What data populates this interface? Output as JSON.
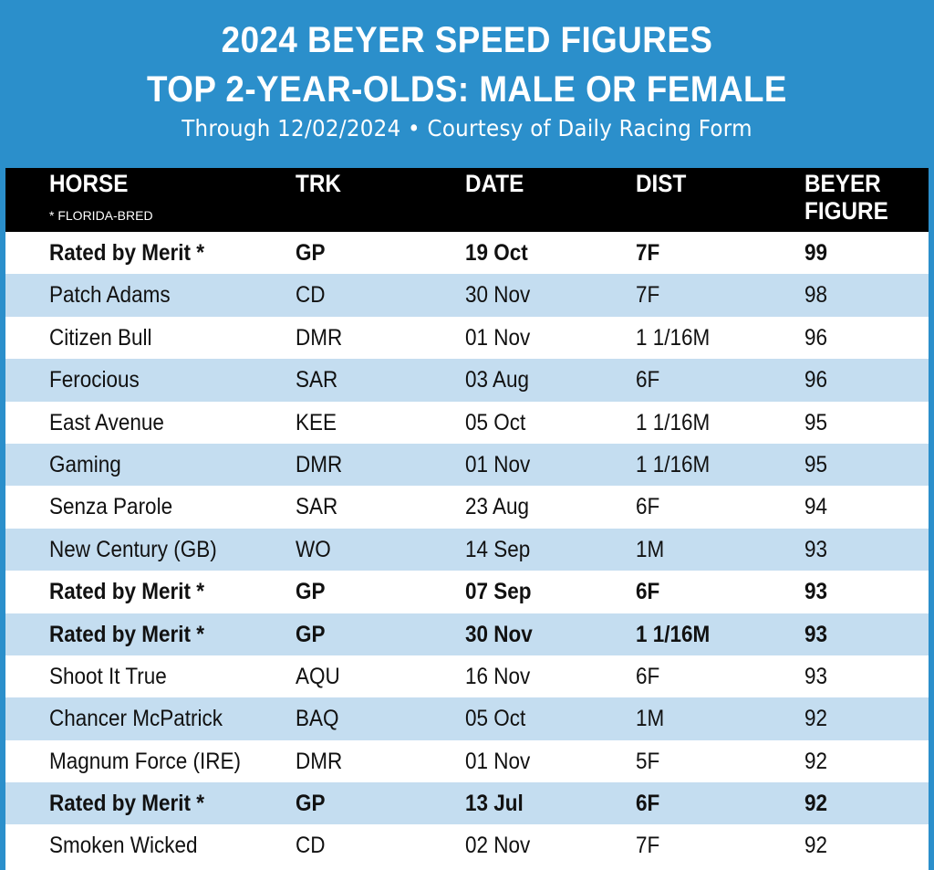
{
  "header": {
    "title_line1": "2024 BEYER SPEED FIGURES",
    "title_line2": "TOP 2-YEAR-OLDS: MALE OR FEMALE",
    "subtitle": "Through 12/02/2024 • Courtesy of Daily Racing Form"
  },
  "colors": {
    "frame_blue": "#2b8fcb",
    "header_black": "#000000",
    "row_alt_blue": "#c4ddf0",
    "row_white": "#ffffff"
  },
  "chart_data": {
    "type": "table",
    "title": "2024 BEYER SPEED FIGURES — TOP 2-YEAR-OLDS: MALE OR FEMALE",
    "subtitle": "Through 12/02/2024 • Courtesy of Daily Racing Form",
    "columns": {
      "horse": "HORSE",
      "horse_note": "* FLORIDA-BRED",
      "trk": "TRK",
      "date": "DATE",
      "dist": "DIST",
      "fig_line1": "BEYER",
      "fig_line2": "FIGURE"
    },
    "rows": [
      {
        "horse": "Rated by Merit *",
        "trk": "GP",
        "date": "19 Oct",
        "dist": "7F",
        "fig": "99",
        "bold": true
      },
      {
        "horse": "Patch Adams",
        "trk": "CD",
        "date": "30 Nov",
        "dist": "7F",
        "fig": "98",
        "bold": false
      },
      {
        "horse": "Citizen Bull",
        "trk": "DMR",
        "date": "01 Nov",
        "dist": "1 1/16M",
        "fig": "96",
        "bold": false
      },
      {
        "horse": "Ferocious",
        "trk": "SAR",
        "date": "03 Aug",
        "dist": "6F",
        "fig": "96",
        "bold": false
      },
      {
        "horse": "East Avenue",
        "trk": "KEE",
        "date": "05 Oct",
        "dist": "1 1/16M",
        "fig": "95",
        "bold": false
      },
      {
        "horse": "Gaming",
        "trk": "DMR",
        "date": "01 Nov",
        "dist": "1 1/16M",
        "fig": "95",
        "bold": false
      },
      {
        "horse": "Senza Parole",
        "trk": "SAR",
        "date": "23 Aug",
        "dist": "6F",
        "fig": "94",
        "bold": false
      },
      {
        "horse": "New Century (GB)",
        "trk": "WO",
        "date": "14 Sep",
        "dist": "1M",
        "fig": "93",
        "bold": false
      },
      {
        "horse": "Rated by Merit *",
        "trk": "GP",
        "date": "07 Sep",
        "dist": "6F",
        "fig": "93",
        "bold": true
      },
      {
        "horse": "Rated by Merit *",
        "trk": "GP",
        "date": "30 Nov",
        "dist": "1 1/16M",
        "fig": "93",
        "bold": true
      },
      {
        "horse": "Shoot It True",
        "trk": "AQU",
        "date": "16 Nov",
        "dist": "6F",
        "fig": "93",
        "bold": false
      },
      {
        "horse": "Chancer McPatrick",
        "trk": "BAQ",
        "date": "05 Oct",
        "dist": "1M",
        "fig": "92",
        "bold": false
      },
      {
        "horse": "Magnum Force (IRE)",
        "trk": "DMR",
        "date": "01 Nov",
        "dist": "5F",
        "fig": "92",
        "bold": false
      },
      {
        "horse": "Rated by Merit *",
        "trk": "GP",
        "date": "13 Jul",
        "dist": "6F",
        "fig": "92",
        "bold": true
      },
      {
        "horse": "Smoken Wicked",
        "trk": "CD",
        "date": "02 Nov",
        "dist": "7F",
        "fig": "92",
        "bold": false
      }
    ]
  }
}
